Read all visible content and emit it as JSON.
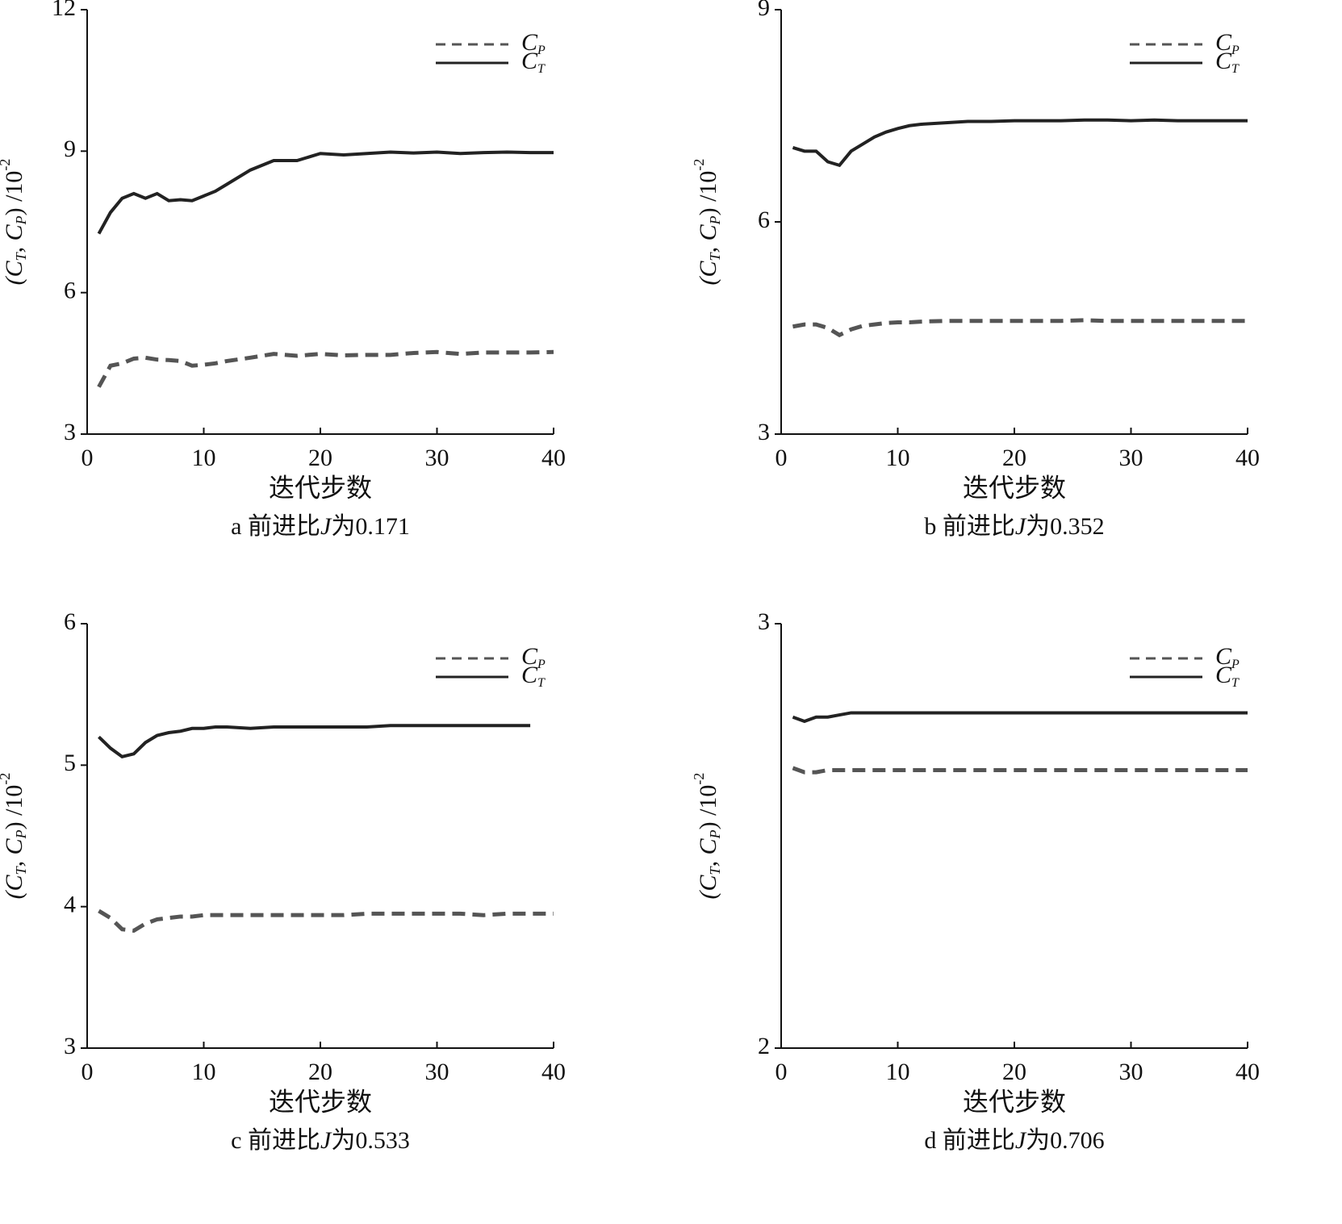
{
  "chart_data": [
    {
      "type": "line",
      "caption": [
        "a 前进比",
        "J",
        "为0.171"
      ],
      "xlabel": "迭代步数",
      "ylabel": [
        "(C",
        "T",
        ", C",
        "P",
        ") /10",
        "-2"
      ],
      "xlim": [
        0,
        40
      ],
      "xticks": [
        0,
        10,
        20,
        30,
        40
      ],
      "ylim": [
        3,
        12
      ],
      "yticks": [
        3,
        6,
        9,
        12
      ],
      "x": [
        1,
        2,
        3,
        4,
        5,
        6,
        7,
        8,
        9,
        10,
        11,
        12,
        14,
        16,
        18,
        20,
        22,
        24,
        26,
        28,
        30,
        32,
        34,
        36,
        38,
        40
      ],
      "series": [
        {
          "name": [
            "C",
            "P"
          ],
          "color": "#555555",
          "style": "dashed",
          "values": [
            4.0,
            4.45,
            4.5,
            4.6,
            4.62,
            4.58,
            4.57,
            4.55,
            4.45,
            4.47,
            4.5,
            4.55,
            4.62,
            4.7,
            4.66,
            4.7,
            4.67,
            4.68,
            4.68,
            4.72,
            4.74,
            4.7,
            4.73,
            4.73,
            4.73,
            4.74
          ]
        },
        {
          "name": [
            "C",
            "T"
          ],
          "color": "#222222",
          "style": "solid",
          "values": [
            7.25,
            7.7,
            8.0,
            8.1,
            8.0,
            8.1,
            7.95,
            7.97,
            7.95,
            8.05,
            8.15,
            8.3,
            8.6,
            8.8,
            8.8,
            8.95,
            8.92,
            8.95,
            8.98,
            8.96,
            8.98,
            8.95,
            8.97,
            8.98,
            8.97,
            8.97
          ]
        }
      ]
    },
    {
      "type": "line",
      "caption": [
        "b 前进比",
        "J",
        "为0.352"
      ],
      "xlabel": "迭代步数",
      "ylabel": [
        "(C",
        "T",
        ", C",
        "P",
        ") /10",
        "-2"
      ],
      "xlim": [
        0,
        40
      ],
      "xticks": [
        0,
        10,
        20,
        30,
        40
      ],
      "ylim": [
        3,
        9
      ],
      "yticks": [
        3,
        6,
        9
      ],
      "x": [
        1,
        2,
        3,
        4,
        5,
        6,
        7,
        8,
        9,
        10,
        11,
        12,
        14,
        16,
        18,
        20,
        22,
        24,
        26,
        28,
        30,
        32,
        34,
        36,
        38,
        40
      ],
      "series": [
        {
          "name": [
            "C",
            "P"
          ],
          "color": "#555555",
          "style": "dashed",
          "values": [
            4.52,
            4.55,
            4.55,
            4.5,
            4.4,
            4.48,
            4.53,
            4.55,
            4.57,
            4.58,
            4.58,
            4.59,
            4.6,
            4.6,
            4.6,
            4.6,
            4.6,
            4.6,
            4.61,
            4.6,
            4.6,
            4.6,
            4.6,
            4.6,
            4.6,
            4.6
          ]
        },
        {
          "name": [
            "C",
            "T"
          ],
          "color": "#222222",
          "style": "solid",
          "values": [
            7.05,
            7.0,
            7.0,
            6.85,
            6.8,
            7.0,
            7.1,
            7.2,
            7.27,
            7.32,
            7.36,
            7.38,
            7.4,
            7.42,
            7.42,
            7.43,
            7.43,
            7.43,
            7.44,
            7.44,
            7.43,
            7.44,
            7.43,
            7.43,
            7.43,
            7.43
          ]
        }
      ]
    },
    {
      "type": "line",
      "caption": [
        "c 前进比",
        "J",
        "为0.533"
      ],
      "xlabel": "迭代步数",
      "ylabel": [
        "(C",
        "T",
        ", C",
        "P",
        ") /10",
        "-2"
      ],
      "xlim": [
        0,
        40
      ],
      "xticks": [
        0,
        10,
        20,
        30,
        40
      ],
      "ylim": [
        3,
        6
      ],
      "yticks": [
        3,
        4,
        5,
        6
      ],
      "x": [
        1,
        2,
        3,
        4,
        5,
        6,
        7,
        8,
        9,
        10,
        11,
        12,
        14,
        16,
        18,
        20,
        22,
        24,
        26,
        28,
        30,
        32,
        34,
        36,
        38,
        40
      ],
      "series": [
        {
          "name": [
            "C",
            "P"
          ],
          "color": "#555555",
          "style": "dashed",
          "values": [
            3.97,
            3.92,
            3.84,
            3.83,
            3.88,
            3.91,
            3.92,
            3.93,
            3.93,
            3.94,
            3.94,
            3.94,
            3.94,
            3.94,
            3.94,
            3.94,
            3.94,
            3.95,
            3.95,
            3.95,
            3.95,
            3.95,
            3.94,
            3.95,
            3.95,
            3.95
          ]
        },
        {
          "name": [
            "C",
            "T"
          ],
          "color": "#222222",
          "style": "solid",
          "values": [
            5.2,
            5.12,
            5.06,
            5.08,
            5.16,
            5.21,
            5.23,
            5.24,
            5.26,
            5.26,
            5.27,
            5.27,
            5.26,
            5.27,
            5.27,
            5.27,
            5.27,
            5.27,
            5.28,
            5.28,
            5.28,
            5.28,
            5.28,
            5.28,
            5.28,
            null
          ]
        }
      ]
    },
    {
      "type": "line",
      "caption": [
        "d 前进比",
        "J",
        "为0.706"
      ],
      "xlabel": "迭代步数",
      "ylabel": [
        "(C",
        "T",
        ", C",
        "P",
        ") /10",
        "-2"
      ],
      "xlim": [
        0,
        40
      ],
      "xticks": [
        0,
        10,
        20,
        30,
        40
      ],
      "ylim": [
        2,
        3
      ],
      "yticks": [
        2,
        3
      ],
      "x": [
        1,
        2,
        3,
        4,
        5,
        6,
        7,
        8,
        9,
        10,
        11,
        12,
        14,
        16,
        18,
        20,
        22,
        24,
        26,
        28,
        30,
        32,
        34,
        36,
        38,
        40
      ],
      "series": [
        {
          "name": [
            "C",
            "P"
          ],
          "color": "#555555",
          "style": "dashed",
          "values": [
            2.66,
            2.65,
            2.65,
            2.655,
            2.655,
            2.655,
            2.655,
            2.655,
            2.655,
            2.655,
            2.655,
            2.655,
            2.655,
            2.655,
            2.655,
            2.655,
            2.655,
            2.655,
            2.655,
            2.655,
            2.655,
            2.655,
            2.655,
            2.655,
            2.655,
            2.655
          ]
        },
        {
          "name": [
            "C",
            "T"
          ],
          "color": "#222222",
          "style": "solid",
          "values": [
            2.78,
            2.77,
            2.78,
            2.78,
            2.785,
            2.79,
            2.79,
            2.79,
            2.79,
            2.79,
            2.79,
            2.79,
            2.79,
            2.79,
            2.79,
            2.79,
            2.79,
            2.79,
            2.79,
            2.79,
            2.79,
            2.79,
            2.79,
            2.79,
            2.79,
            2.79
          ]
        }
      ]
    }
  ]
}
